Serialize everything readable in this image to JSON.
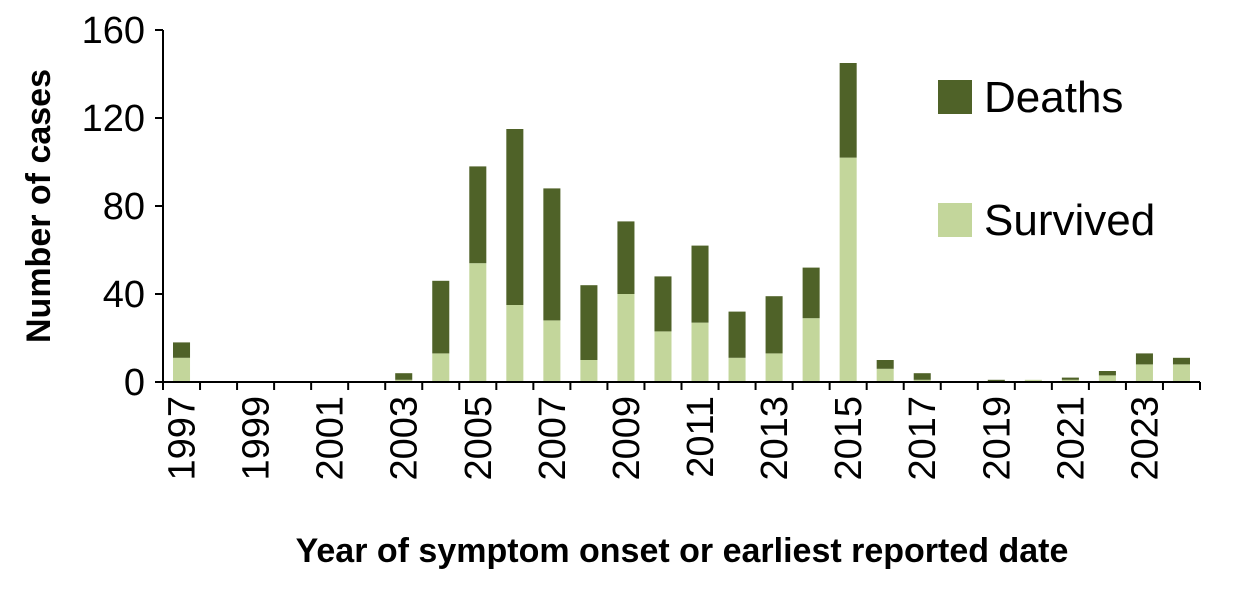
{
  "chart_data": {
    "type": "bar",
    "stacked": true,
    "xlabel": "Year of symptom onset or earliest reported date",
    "ylabel": "Number of cases",
    "ylim": [
      0,
      160
    ],
    "yticks": [
      0,
      40,
      80,
      120,
      160
    ],
    "grid": false,
    "legend_position": "top-right",
    "categories": [
      "1997",
      "1998",
      "1999",
      "2000",
      "2001",
      "2002",
      "2003",
      "2004",
      "2005",
      "2006",
      "2007",
      "2008",
      "2009",
      "2010",
      "2011",
      "2012",
      "2013",
      "2014",
      "2015",
      "2016",
      "2017",
      "2018",
      "2019",
      "2020",
      "2021",
      "2022",
      "2023",
      "2024"
    ],
    "tick_labels": [
      "1997",
      "1999",
      "2001",
      "2003",
      "2005",
      "2007",
      "2009",
      "2011",
      "2013",
      "2015",
      "2017",
      "2019",
      "2021",
      "2023"
    ],
    "series": [
      {
        "name": "Survived",
        "color": "#c3d69b",
        "values": [
          11,
          0,
          0,
          0,
          0,
          0,
          1,
          13,
          54,
          35,
          28,
          10,
          40,
          23,
          27,
          11,
          13,
          29,
          102,
          6,
          1,
          0,
          0,
          1,
          1,
          3,
          8,
          8
        ]
      },
      {
        "name": "Deaths",
        "color": "#4f6228",
        "values": [
          7,
          0,
          0,
          0,
          0,
          0,
          3,
          33,
          44,
          80,
          60,
          34,
          33,
          25,
          35,
          21,
          26,
          23,
          43,
          4,
          3,
          0,
          1,
          0,
          1,
          2,
          5,
          3
        ]
      }
    ],
    "legend": [
      "Deaths",
      "Survived"
    ]
  }
}
